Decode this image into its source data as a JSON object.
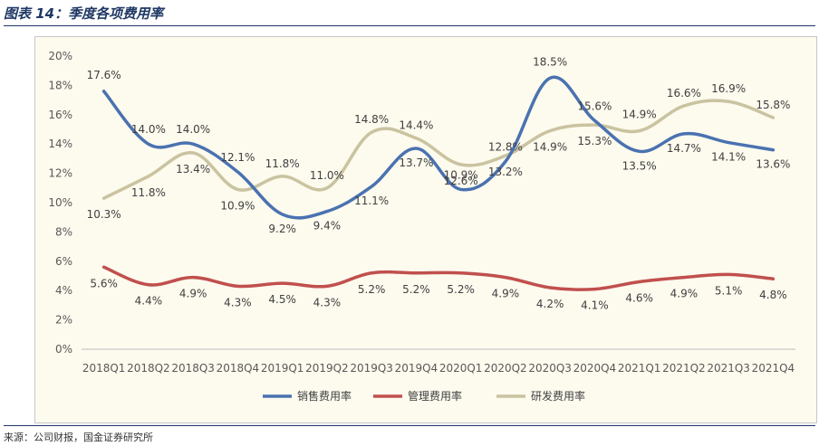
{
  "header": {
    "title": "图表 14：季度各项费用率"
  },
  "footer": {
    "source": "来源：公司财报，国金证券研究所"
  },
  "colors": {
    "sales": "#4a72b0",
    "admin": "#c0504d",
    "rnd": "#c9c3a0"
  },
  "chart_data": {
    "type": "line",
    "title": "季度各项费用率",
    "categories": [
      "2018Q1",
      "2018Q2",
      "2018Q3",
      "2018Q4",
      "2019Q1",
      "2019Q2",
      "2019Q3",
      "2019Q4",
      "2020Q1",
      "2020Q2",
      "2020Q3",
      "2020Q4",
      "2021Q1",
      "2021Q2",
      "2021Q3",
      "2021Q4"
    ],
    "yticks": [
      "0%",
      "2%",
      "4%",
      "6%",
      "8%",
      "10%",
      "12%",
      "14%",
      "16%",
      "18%",
      "20%"
    ],
    "ylim": [
      0,
      20
    ],
    "series": [
      {
        "name": "销售费用率",
        "key": "sales",
        "values": [
          17.6,
          14.0,
          14.0,
          12.1,
          9.2,
          9.4,
          11.1,
          13.7,
          10.9,
          12.8,
          18.5,
          15.6,
          13.5,
          14.7,
          14.1,
          13.6
        ],
        "labels": [
          "17.6%",
          "14.0%",
          "14.0%",
          "12.1%",
          "9.2%",
          "9.4%",
          "11.1%",
          "13.7%",
          "10.9%",
          "12.8%",
          "18.5%",
          "15.6%",
          "13.5%",
          "14.7%",
          "14.1%",
          "13.6%"
        ]
      },
      {
        "name": "管理费用率",
        "key": "admin",
        "values": [
          5.6,
          4.4,
          4.9,
          4.3,
          4.5,
          4.3,
          5.2,
          5.2,
          5.2,
          4.9,
          4.2,
          4.1,
          4.6,
          4.9,
          5.1,
          4.8
        ],
        "labels": [
          "5.6%",
          "4.4%",
          "4.9%",
          "4.3%",
          "4.5%",
          "4.3%",
          "5.2%",
          "5.2%",
          "5.2%",
          "4.9%",
          "4.2%",
          "4.1%",
          "4.6%",
          "4.9%",
          "5.1%",
          "4.8%"
        ]
      },
      {
        "name": "研发费用率",
        "key": "rnd",
        "values": [
          10.3,
          11.8,
          13.4,
          10.9,
          11.8,
          11.0,
          14.8,
          14.4,
          12.6,
          13.2,
          14.9,
          15.3,
          14.9,
          16.6,
          16.9,
          15.8
        ],
        "labels": [
          "10.3%",
          "11.8%",
          "13.4%",
          "10.9%",
          "11.8%",
          "11.0%",
          "14.8%",
          "14.4%",
          "12.6%",
          "13.2%",
          "14.9%",
          "15.3%",
          "14.9%",
          "16.6%",
          "16.9%",
          "15.8%"
        ]
      }
    ]
  }
}
